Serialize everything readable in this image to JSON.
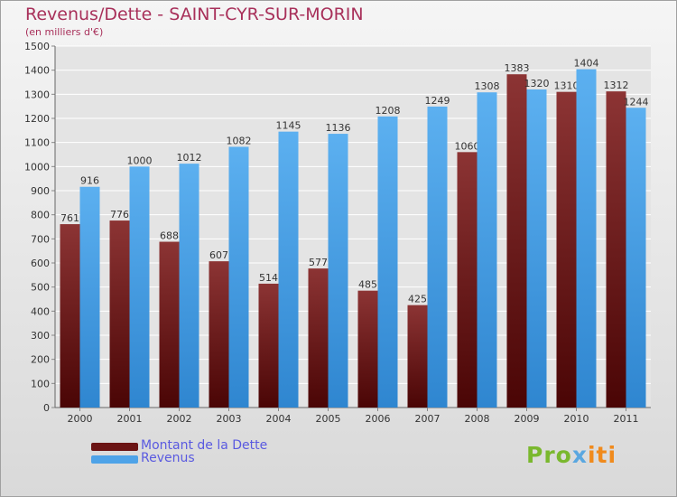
{
  "title": "Revenus/Dette - SAINT-CYR-SUR-MORIN",
  "subtitle": "(en milliers d'€)",
  "legend": {
    "dette_label": "Montant de la Dette",
    "revenus_label": "Revenus"
  },
  "logo": {
    "part1": "Pro",
    "part2": "x",
    "part3": "iti"
  },
  "colors": {
    "dette": "#6b1414",
    "dette_light": "#8c3434",
    "revenus": "#4ea3e8",
    "revenus_dark": "#2f86d0",
    "title": "#a8305a",
    "legend_text": "#5a5ae0"
  },
  "chart_data": {
    "type": "bar",
    "categories": [
      "2000",
      "2001",
      "2002",
      "2003",
      "2004",
      "2005",
      "2006",
      "2007",
      "2008",
      "2009",
      "2010",
      "2011"
    ],
    "series": [
      {
        "name": "Montant de la Dette",
        "values": [
          761,
          776,
          688,
          607,
          514,
          577,
          485,
          425,
          1060,
          1383,
          1310,
          1312
        ]
      },
      {
        "name": "Revenus",
        "values": [
          916,
          1000,
          1012,
          1082,
          1145,
          1136,
          1208,
          1249,
          1308,
          1320,
          1404,
          1244
        ]
      }
    ],
    "ylim": [
      0,
      1500
    ],
    "yticks": [
      0,
      100,
      200,
      300,
      400,
      500,
      600,
      700,
      800,
      900,
      1000,
      1100,
      1200,
      1300,
      1400,
      1500
    ],
    "grid": true,
    "legend_position": "bottom-left"
  }
}
